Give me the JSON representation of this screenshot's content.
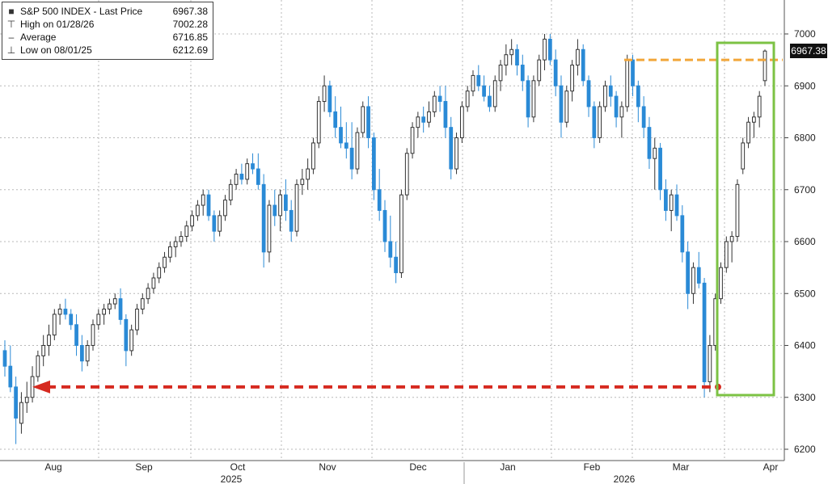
{
  "chart_data": {
    "type": "candlestick",
    "y_axis": {
      "ticks": [
        6200,
        6300,
        6400,
        6500,
        6600,
        6700,
        6800,
        6900,
        7000
      ],
      "ylim": [
        6180,
        7070
      ],
      "position": "right"
    },
    "x_axis": {
      "months": [
        "Aug",
        "Sep",
        "Oct",
        "Nov",
        "Dec",
        "Jan",
        "Feb",
        "Mar",
        "Apr"
      ],
      "years": [
        "2025",
        "2026"
      ]
    },
    "legend": {
      "title": "S&P 500 INDEX - Last Price",
      "last_price": "6967.38",
      "items": [
        {
          "label": "High on 01/28/26",
          "value": "7002.28"
        },
        {
          "label": "Average",
          "value": "6716.85"
        },
        {
          "label": "Low on 08/01/25",
          "value": "6212.69"
        }
      ]
    },
    "last_price_label": "6967.38",
    "grid": true,
    "annotations": {
      "low_arrow_level": 6320,
      "high_line_level": 6950
    },
    "colors": {
      "up": "#9a9a9a",
      "down": "#2a8ad6",
      "box": "#7cc244",
      "arrow": "#d62a20",
      "line": "#f2a63a"
    },
    "candles": [
      [
        6390,
        6410,
        6340,
        6360
      ],
      [
        6360,
        6400,
        6310,
        6320
      ],
      [
        6320,
        6340,
        6210,
        6260
      ],
      [
        6250,
        6310,
        6230,
        6290
      ],
      [
        6290,
        6330,
        6270,
        6300
      ],
      [
        6300,
        6360,
        6290,
        6340
      ],
      [
        6340,
        6390,
        6330,
        6380
      ],
      [
        6380,
        6420,
        6360,
        6400
      ],
      [
        6400,
        6440,
        6380,
        6420
      ],
      [
        6420,
        6470,
        6410,
        6460
      ],
      [
        6460,
        6480,
        6440,
        6470
      ],
      [
        6470,
        6490,
        6450,
        6460
      ],
      [
        6460,
        6470,
        6430,
        6440
      ],
      [
        6440,
        6460,
        6380,
        6400
      ],
      [
        6400,
        6420,
        6350,
        6370
      ],
      [
        6370,
        6410,
        6360,
        6400
      ],
      [
        6400,
        6450,
        6390,
        6440
      ],
      [
        6440,
        6470,
        6430,
        6460
      ],
      [
        6460,
        6480,
        6440,
        6470
      ],
      [
        6470,
        6490,
        6460,
        6480
      ],
      [
        6480,
        6500,
        6470,
        6490
      ],
      [
        6490,
        6510,
        6440,
        6450
      ],
      [
        6450,
        6460,
        6360,
        6390
      ],
      [
        6390,
        6440,
        6380,
        6430
      ],
      [
        6430,
        6480,
        6420,
        6470
      ],
      [
        6470,
        6500,
        6460,
        6490
      ],
      [
        6490,
        6520,
        6480,
        6510
      ],
      [
        6510,
        6540,
        6500,
        6530
      ],
      [
        6530,
        6560,
        6520,
        6550
      ],
      [
        6550,
        6580,
        6540,
        6570
      ],
      [
        6570,
        6600,
        6560,
        6590
      ],
      [
        6590,
        6610,
        6570,
        6600
      ],
      [
        6600,
        6620,
        6590,
        6610
      ],
      [
        6610,
        6640,
        6600,
        6630
      ],
      [
        6630,
        6660,
        6620,
        6650
      ],
      [
        6650,
        6680,
        6640,
        6670
      ],
      [
        6670,
        6700,
        6650,
        6690
      ],
      [
        6690,
        6700,
        6640,
        6650
      ],
      [
        6650,
        6660,
        6600,
        6620
      ],
      [
        6620,
        6660,
        6610,
        6650
      ],
      [
        6650,
        6690,
        6640,
        6680
      ],
      [
        6680,
        6720,
        6670,
        6710
      ],
      [
        6710,
        6740,
        6700,
        6730
      ],
      [
        6730,
        6750,
        6710,
        6720
      ],
      [
        6720,
        6760,
        6710,
        6750
      ],
      [
        6750,
        6770,
        6730,
        6740
      ],
      [
        6740,
        6770,
        6700,
        6710
      ],
      [
        6710,
        6730,
        6550,
        6580
      ],
      [
        6580,
        6680,
        6560,
        6670
      ],
      [
        6670,
        6700,
        6630,
        6650
      ],
      [
        6650,
        6700,
        6620,
        6690
      ],
      [
        6690,
        6720,
        6640,
        6660
      ],
      [
        6660,
        6680,
        6600,
        6620
      ],
      [
        6620,
        6720,
        6610,
        6710
      ],
      [
        6710,
        6740,
        6690,
        6720
      ],
      [
        6720,
        6760,
        6700,
        6740
      ],
      [
        6740,
        6800,
        6730,
        6790
      ],
      [
        6790,
        6880,
        6780,
        6870
      ],
      [
        6870,
        6920,
        6850,
        6900
      ],
      [
        6900,
        6910,
        6840,
        6850
      ],
      [
        6850,
        6880,
        6800,
        6820
      ],
      [
        6820,
        6860,
        6780,
        6790
      ],
      [
        6790,
        6830,
        6760,
        6780
      ],
      [
        6780,
        6830,
        6720,
        6740
      ],
      [
        6740,
        6820,
        6730,
        6810
      ],
      [
        6810,
        6870,
        6800,
        6860
      ],
      [
        6860,
        6880,
        6780,
        6800
      ],
      [
        6800,
        6810,
        6680,
        6700
      ],
      [
        6700,
        6740,
        6640,
        6660
      ],
      [
        6660,
        6680,
        6580,
        6600
      ],
      [
        6600,
        6650,
        6550,
        6570
      ],
      [
        6570,
        6600,
        6520,
        6540
      ],
      [
        6540,
        6700,
        6530,
        6690
      ],
      [
        6690,
        6780,
        6680,
        6770
      ],
      [
        6770,
        6830,
        6760,
        6820
      ],
      [
        6820,
        6850,
        6800,
        6840
      ],
      [
        6840,
        6860,
        6810,
        6830
      ],
      [
        6830,
        6870,
        6820,
        6850
      ],
      [
        6850,
        6890,
        6840,
        6880
      ],
      [
        6880,
        6900,
        6850,
        6870
      ],
      [
        6870,
        6900,
        6800,
        6820
      ],
      [
        6820,
        6840,
        6720,
        6740
      ],
      [
        6740,
        6810,
        6730,
        6800
      ],
      [
        6800,
        6870,
        6790,
        6860
      ],
      [
        6860,
        6900,
        6850,
        6890
      ],
      [
        6890,
        6930,
        6880,
        6920
      ],
      [
        6920,
        6940,
        6890,
        6900
      ],
      [
        6900,
        6920,
        6870,
        6880
      ],
      [
        6880,
        6900,
        6850,
        6860
      ],
      [
        6860,
        6920,
        6850,
        6910
      ],
      [
        6910,
        6950,
        6890,
        6940
      ],
      [
        6940,
        6980,
        6920,
        6960
      ],
      [
        6960,
        6990,
        6940,
        6970
      ],
      [
        6970,
        6980,
        6920,
        6940
      ],
      [
        6940,
        6960,
        6890,
        6910
      ],
      [
        6910,
        6920,
        6820,
        6840
      ],
      [
        6840,
        6920,
        6830,
        6910
      ],
      [
        6910,
        6960,
        6900,
        6950
      ],
      [
        6950,
        7000,
        6930,
        6990
      ],
      [
        6990,
        7000,
        6940,
        6950
      ],
      [
        6950,
        6970,
        6880,
        6900
      ],
      [
        6900,
        6920,
        6800,
        6830
      ],
      [
        6830,
        6900,
        6820,
        6890
      ],
      [
        6890,
        6950,
        6870,
        6940
      ],
      [
        6940,
        6990,
        6920,
        6970
      ],
      [
        6970,
        6980,
        6900,
        6910
      ],
      [
        6910,
        6920,
        6840,
        6860
      ],
      [
        6860,
        6870,
        6780,
        6800
      ],
      [
        6800,
        6870,
        6790,
        6860
      ],
      [
        6860,
        6910,
        6850,
        6900
      ],
      [
        6900,
        6920,
        6860,
        6880
      ],
      [
        6880,
        6890,
        6820,
        6840
      ],
      [
        6840,
        6870,
        6800,
        6860
      ],
      [
        6860,
        6960,
        6850,
        6950
      ],
      [
        6950,
        6960,
        6880,
        6900
      ],
      [
        6900,
        6910,
        6830,
        6860
      ],
      [
        6860,
        6880,
        6800,
        6820
      ],
      [
        6820,
        6840,
        6740,
        6760
      ],
      [
        6760,
        6800,
        6700,
        6780
      ],
      [
        6780,
        6790,
        6680,
        6700
      ],
      [
        6700,
        6720,
        6640,
        6660
      ],
      [
        6660,
        6700,
        6620,
        6690
      ],
      [
        6690,
        6710,
        6640,
        6650
      ],
      [
        6650,
        6670,
        6560,
        6580
      ],
      [
        6580,
        6600,
        6470,
        6500
      ],
      [
        6500,
        6560,
        6480,
        6550
      ],
      [
        6550,
        6580,
        6510,
        6520
      ],
      [
        6520,
        6530,
        6300,
        6330
      ],
      [
        6330,
        6420,
        6310,
        6400
      ],
      [
        6400,
        6500,
        6390,
        6490
      ],
      [
        6490,
        6560,
        6480,
        6550
      ],
      [
        6550,
        6610,
        6540,
        6600
      ],
      [
        6600,
        6620,
        6560,
        6610
      ],
      [
        6610,
        6720,
        6600,
        6710
      ],
      [
        6740,
        6800,
        6730,
        6790
      ],
      [
        6790,
        6840,
        6780,
        6830
      ],
      [
        6830,
        6850,
        6800,
        6840
      ],
      [
        6840,
        6890,
        6820,
        6880
      ],
      [
        6910,
        6970,
        6900,
        6967
      ]
    ]
  }
}
